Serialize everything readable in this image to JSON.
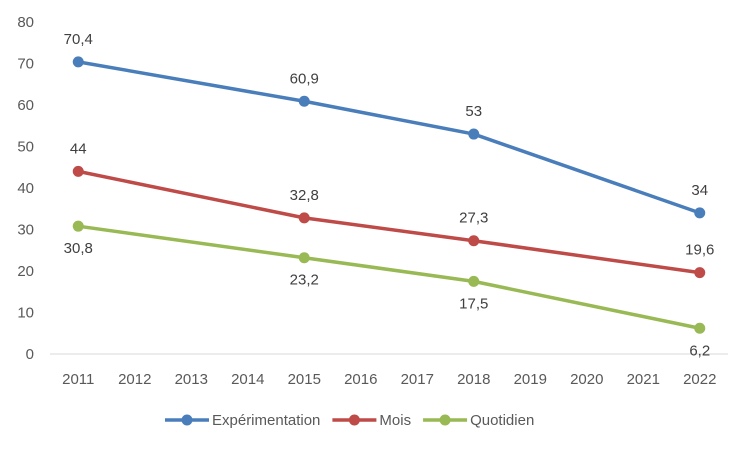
{
  "chart_data": {
    "type": "line",
    "title": "",
    "xlabel": "",
    "ylabel": "",
    "x": [
      "2011",
      "2012",
      "2013",
      "2014",
      "2015",
      "2016",
      "2017",
      "2018",
      "2019",
      "2020",
      "2021",
      "2022"
    ],
    "ylim": [
      0,
      80
    ],
    "yticks": [
      0,
      10,
      20,
      30,
      40,
      50,
      60,
      70,
      80
    ],
    "ytick_labels": [
      "0",
      "10",
      "20",
      "30",
      "40",
      "50",
      "60",
      "70",
      "80"
    ],
    "grid": false,
    "legend_position": "bottom",
    "series": [
      {
        "name": "Expérimentation",
        "color": "#4a7ebb",
        "points": [
          {
            "x": "2011",
            "y": 70.4,
            "label": "70,4",
            "label_pos": "above"
          },
          {
            "x": "2015",
            "y": 60.9,
            "label": "60,9",
            "label_pos": "above"
          },
          {
            "x": "2018",
            "y": 53,
            "label": "53",
            "label_pos": "above"
          },
          {
            "x": "2022",
            "y": 34,
            "label": "34",
            "label_pos": "above"
          }
        ]
      },
      {
        "name": "Mois",
        "color": "#be4b48",
        "points": [
          {
            "x": "2011",
            "y": 44,
            "label": "44",
            "label_pos": "above"
          },
          {
            "x": "2015",
            "y": 32.8,
            "label": "32,8",
            "label_pos": "above"
          },
          {
            "x": "2018",
            "y": 27.3,
            "label": "27,3",
            "label_pos": "above"
          },
          {
            "x": "2022",
            "y": 19.6,
            "label": "19,6",
            "label_pos": "above"
          }
        ]
      },
      {
        "name": "Quotidien",
        "color": "#98b954",
        "points": [
          {
            "x": "2011",
            "y": 30.8,
            "label": "30,8",
            "label_pos": "below"
          },
          {
            "x": "2015",
            "y": 23.2,
            "label": "23,2",
            "label_pos": "below"
          },
          {
            "x": "2018",
            "y": 17.5,
            "label": "17,5",
            "label_pos": "below"
          },
          {
            "x": "2022",
            "y": 6.2,
            "label": "6,2",
            "label_pos": "below"
          }
        ]
      }
    ]
  }
}
